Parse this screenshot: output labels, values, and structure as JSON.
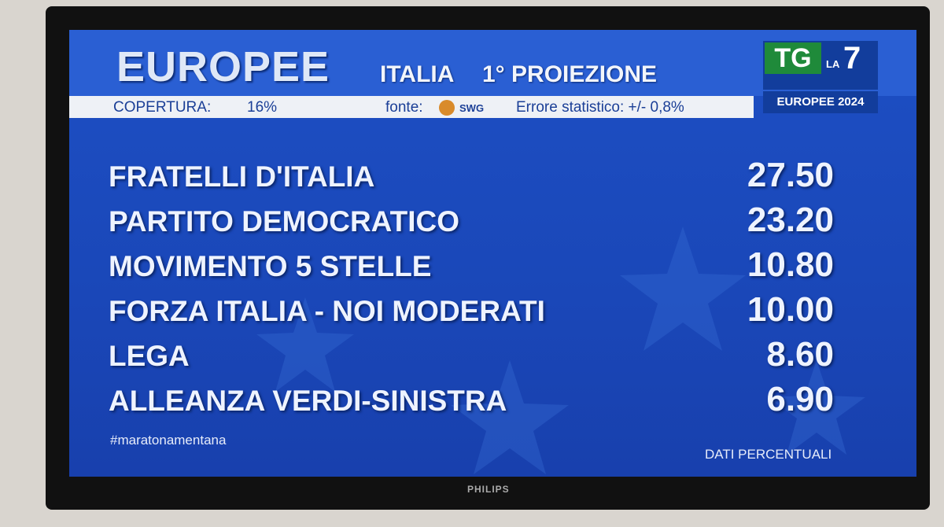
{
  "header": {
    "title": "EUROPEE",
    "region": "ITALIA",
    "projection": "1° PROIEZIONE",
    "coverage_label": "COPERTURA:",
    "coverage_value": "16%",
    "source_label": "fonte:",
    "source": "SWG",
    "error": "Errore statistico: +/- 0,8%"
  },
  "logo": {
    "tg": "TG",
    "la": "LA",
    "seven": "7",
    "caption": "EUROPEE 2024"
  },
  "table": {
    "rows": [
      [
        "FRATELLI D'ITALIA",
        "27.50"
      ],
      [
        "PARTITO DEMOCRATICO",
        "23.20"
      ],
      [
        "MOVIMENTO 5 STELLE",
        "10.80"
      ],
      [
        "FORZA ITALIA - NOI MODERATI",
        "10.00"
      ],
      [
        "LEGA",
        "8.60"
      ],
      [
        "ALLEANZA VERDI-SINISTRA",
        "6.90"
      ]
    ]
  },
  "footer": {
    "hashtag": "#maratonamentana",
    "note": "DATI PERCENTUALI"
  },
  "tv_brand": "PHILIPS"
}
